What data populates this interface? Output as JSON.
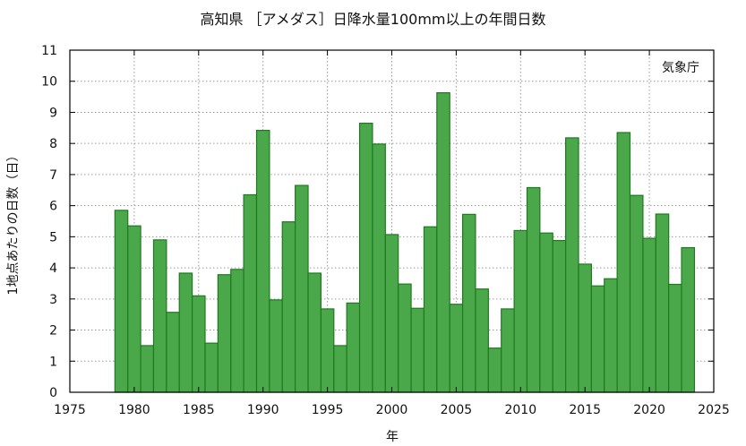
{
  "chart_data": {
    "type": "bar",
    "title": "高知県 ［アメダス］日降水量100mm以上の年間日数",
    "xlabel": "年",
    "ylabel": "1地点あたりの日数（日）",
    "source": "気象庁",
    "xlim": [
      1975,
      2025
    ],
    "ylim": [
      0,
      11
    ],
    "x_ticks": [
      1975,
      1980,
      1985,
      1990,
      1995,
      2000,
      2005,
      2010,
      2015,
      2020,
      2025
    ],
    "y_ticks": [
      0,
      1,
      2,
      3,
      4,
      5,
      6,
      7,
      8,
      9,
      10,
      11
    ],
    "grid": true,
    "bar_color": "#4aa84a",
    "bar_edge_color": "#1f7a1f",
    "x": [
      1978,
      1979,
      1980,
      1981,
      1982,
      1983,
      1984,
      1985,
      1986,
      1987,
      1988,
      1989,
      1990,
      1991,
      1992,
      1993,
      1994,
      1995,
      1996,
      1997,
      1998,
      1999,
      2000,
      2001,
      2002,
      2003,
      2004,
      2005,
      2006,
      2007,
      2008,
      2009,
      2010,
      2011,
      2012,
      2013,
      2014,
      2015,
      2016,
      2017,
      2018,
      2019,
      2020,
      2021,
      2022
    ],
    "values": [
      5.85,
      5.35,
      1.5,
      4.9,
      2.57,
      3.83,
      3.1,
      1.58,
      3.78,
      3.95,
      6.35,
      8.42,
      2.97,
      5.48,
      6.65,
      3.83,
      2.68,
      1.5,
      2.87,
      8.65,
      7.98,
      5.07,
      3.48,
      2.7,
      5.32,
      9.63,
      2.83,
      5.72,
      3.32,
      1.42,
      2.68,
      5.2,
      6.58,
      5.12,
      4.88,
      8.18,
      4.12,
      3.42,
      3.65,
      8.35,
      6.33,
      4.95,
      5.73,
      3.47,
      4.65
    ]
  }
}
